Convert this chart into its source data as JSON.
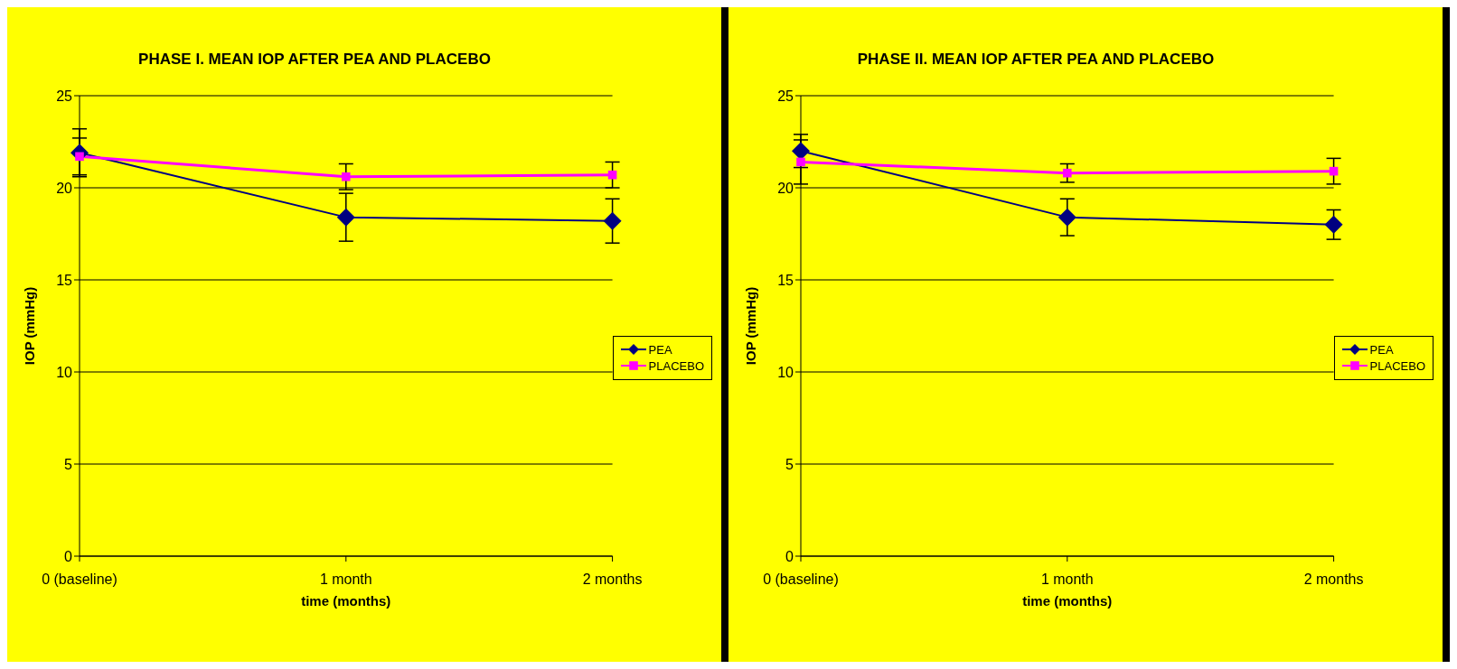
{
  "chart_data": [
    {
      "type": "line",
      "title": "PHASE I. MEAN IOP AFTER PEA AND PLACEBO",
      "xlabel": "time (months)",
      "ylabel": "IOP (mmHg)",
      "categories": [
        "0 (baseline)",
        "1 month",
        "2 months"
      ],
      "ylim": [
        0,
        25
      ],
      "yticks": [
        0,
        5,
        10,
        15,
        20,
        25
      ],
      "grid": "y",
      "legend": "right",
      "series": [
        {
          "name": "PEA",
          "color": "#000080",
          "marker": "diamond",
          "values": [
            21.9,
            18.4,
            18.2
          ],
          "errors": [
            1.3,
            1.3,
            1.2
          ]
        },
        {
          "name": "PLACEBO",
          "color": "#ff00ff",
          "marker": "square",
          "values": [
            21.7,
            20.6,
            20.7
          ],
          "errors": [
            1.0,
            0.7,
            0.7
          ]
        }
      ]
    },
    {
      "type": "line",
      "title": "PHASE II. MEAN IOP AFTER PEA AND PLACEBO",
      "xlabel": "time (months)",
      "ylabel": "IOP (mmHg)",
      "categories": [
        "0 (baseline)",
        "1 month",
        "2 months"
      ],
      "ylim": [
        0,
        25
      ],
      "yticks": [
        0,
        5,
        10,
        15,
        20,
        25
      ],
      "grid": "y",
      "legend": "right",
      "series": [
        {
          "name": "PEA",
          "color": "#000080",
          "marker": "diamond",
          "values": [
            22.0,
            18.4,
            18.0
          ],
          "errors": [
            0.9,
            1.0,
            0.8
          ]
        },
        {
          "name": "PLACEBO",
          "color": "#ff00ff",
          "marker": "square",
          "values": [
            21.4,
            20.8,
            20.9
          ],
          "errors": [
            1.2,
            0.5,
            0.7
          ]
        }
      ]
    }
  ]
}
